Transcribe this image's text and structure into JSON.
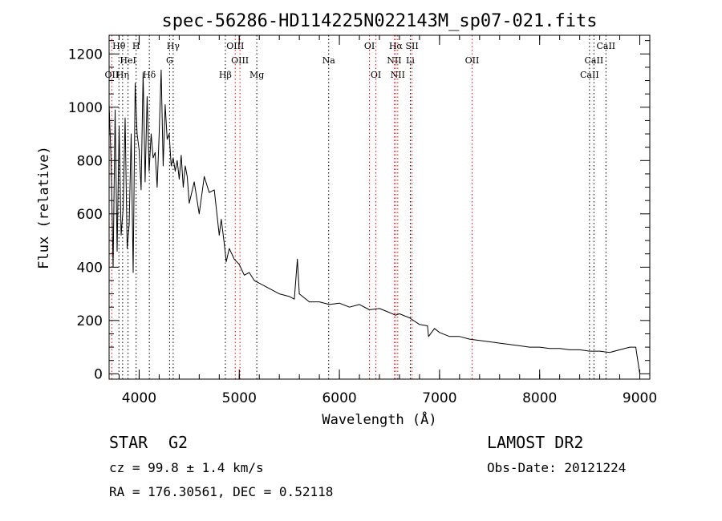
{
  "chart_data": {
    "type": "line",
    "title": "spec-56286-HD114225N022143M_sp07-021.fits",
    "xlabel": "Wavelength (Å)",
    "ylabel": "Flux (relative)",
    "xlim": [
      3700,
      9100
    ],
    "ylim": [
      -20,
      1270
    ],
    "xticks": [
      4000,
      5000,
      6000,
      7000,
      8000,
      9000
    ],
    "yticks": [
      0,
      200,
      400,
      600,
      800,
      1000,
      1200
    ],
    "grid": false,
    "line_color": "#000000",
    "marker_color": "#ff0000",
    "series": [
      {
        "x": [
          3700,
          3720,
          3740,
          3760,
          3780,
          3800,
          3820,
          3840,
          3860,
          3880,
          3900,
          3920,
          3940,
          3960,
          3980,
          4000,
          4020,
          4040,
          4060,
          4080,
          4100,
          4120,
          4140,
          4160,
          4180,
          4200,
          4220,
          4240,
          4260,
          4280,
          4300,
          4320,
          4340,
          4360,
          4380,
          4400,
          4420,
          4440,
          4460,
          4480,
          4500,
          4550,
          4600,
          4650,
          4700,
          4750,
          4800,
          4820,
          4850,
          4870,
          4900,
          4950,
          5000,
          5050,
          5100,
          5150,
          5200,
          5300,
          5400,
          5500,
          5550,
          5580,
          5600,
          5700,
          5800,
          5900,
          6000,
          6100,
          6200,
          6300,
          6400,
          6500,
          6560,
          6600,
          6700,
          6800,
          6880,
          6890,
          6950,
          7000,
          7100,
          7200,
          7300,
          7400,
          7500,
          7600,
          7700,
          7800,
          7900,
          8000,
          8100,
          8200,
          8300,
          8400,
          8500,
          8600,
          8700,
          8800,
          8900,
          8960,
          9000
        ],
        "values": [
          1010,
          800,
          400,
          990,
          460,
          930,
          520,
          620,
          960,
          470,
          560,
          900,
          380,
          1090,
          900,
          840,
          690,
          1130,
          720,
          1040,
          760,
          900,
          810,
          830,
          700,
          900,
          1140,
          780,
          1010,
          880,
          900,
          780,
          810,
          760,
          800,
          730,
          820,
          700,
          780,
          740,
          640,
          720,
          600,
          740,
          680,
          690,
          520,
          580,
          490,
          420,
          470,
          430,
          410,
          370,
          380,
          350,
          340,
          320,
          300,
          290,
          280,
          430,
          300,
          270,
          270,
          260,
          265,
          250,
          260,
          240,
          245,
          230,
          220,
          225,
          210,
          185,
          180,
          140,
          170,
          155,
          140,
          140,
          130,
          125,
          120,
          115,
          110,
          105,
          100,
          100,
          95,
          95,
          90,
          90,
          85,
          85,
          80,
          90,
          100,
          100,
          0
        ]
      }
    ],
    "lines": [
      {
        "label": "Hθ",
        "x": 3798,
        "row": 0,
        "color": "#000000"
      },
      {
        "label": "H",
        "x": 3970,
        "row": 0,
        "color": "#000000"
      },
      {
        "label": "Hγ",
        "x": 4340,
        "row": 0,
        "color": "#000000"
      },
      {
        "label": "OIII",
        "x": 4960,
        "row": 0,
        "color": "#ff0000"
      },
      {
        "label": "OI",
        "x": 6300,
        "row": 0,
        "color": "#ff0000"
      },
      {
        "label": "Hα",
        "x": 6563,
        "row": 0,
        "color": "#ff0000"
      },
      {
        "label": "SII",
        "x": 6725,
        "row": 0,
        "color": "#ff0000"
      },
      {
        "label": "CaII",
        "x": 8662,
        "row": 0,
        "color": "#000000"
      },
      {
        "label": "HeI",
        "x": 3889,
        "row": 1,
        "color": "#000000"
      },
      {
        "label": "G",
        "x": 4304,
        "row": 1,
        "color": "#000000"
      },
      {
        "label": "OIII",
        "x": 5007,
        "row": 1,
        "color": "#ff0000"
      },
      {
        "label": "Na",
        "x": 5893,
        "row": 1,
        "color": "#000000"
      },
      {
        "label": "NII",
        "x": 6548,
        "row": 1,
        "color": "#ff0000"
      },
      {
        "label": "Li",
        "x": 6708,
        "row": 1,
        "color": "#000000"
      },
      {
        "label": "OII",
        "x": 7325,
        "row": 1,
        "color": "#ff0000"
      },
      {
        "label": "CaII",
        "x": 8542,
        "row": 1,
        "color": "#000000"
      },
      {
        "label": "OII",
        "x": 3727,
        "row": 2,
        "color": "#ff0000"
      },
      {
        "label": "Hη",
        "x": 3835,
        "row": 2,
        "color": "#000000"
      },
      {
        "label": "Hδ",
        "x": 4102,
        "row": 2,
        "color": "#000000"
      },
      {
        "label": "Hβ",
        "x": 4861,
        "row": 2,
        "color": "#000000"
      },
      {
        "label": "Mg",
        "x": 5175,
        "row": 2,
        "color": "#000000"
      },
      {
        "label": "OI",
        "x": 6364,
        "row": 2,
        "color": "#ff0000"
      },
      {
        "label": "NII",
        "x": 6583,
        "row": 2,
        "color": "#ff0000"
      },
      {
        "label": "CaII",
        "x": 8498,
        "row": 2,
        "color": "#000000"
      }
    ]
  },
  "info": {
    "class": "STAR",
    "subclass": "G2",
    "survey": "LAMOST DR2",
    "cz": "cz = 99.8 ± 1.4 km/s",
    "obs_date": "Obs-Date: 20121224",
    "coords": "RA = 176.30561, DEC =   0.52118"
  }
}
